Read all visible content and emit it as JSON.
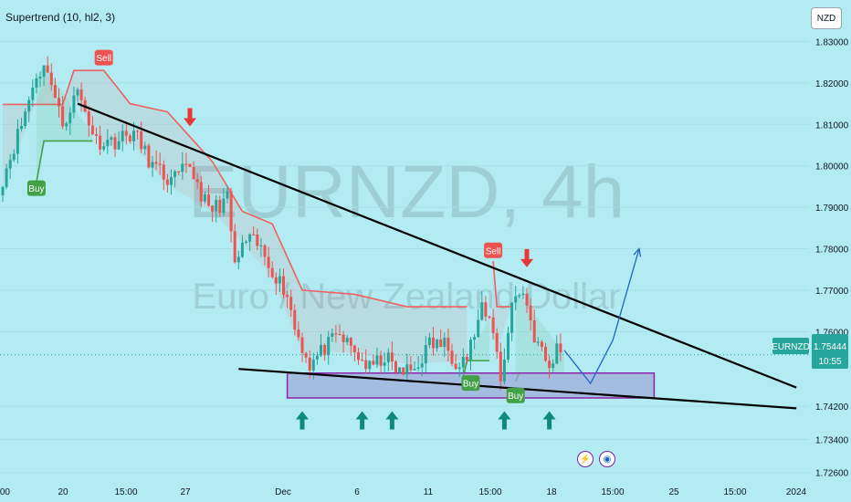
{
  "indicator": {
    "label": "Supertrend (10, hl2, 3)"
  },
  "currency_button": "NZD",
  "watermark": {
    "symbol": "EURNZD, 4h",
    "name": "Euro / New Zealand Dollar"
  },
  "price_tag": {
    "symbol": "EURNZD",
    "price": "1.75444",
    "countdown": "10:55"
  },
  "icons": [
    "lightning-icon",
    "calendar-icon"
  ],
  "colors": {
    "background": "#b2ebf2",
    "up": "#26a69a",
    "down": "#ef5350",
    "supertrend_down": "#f06060",
    "supertrend_up": "#43a047",
    "zone_fill": "#9fa8da",
    "zone_border": "#8e24aa",
    "projection": "#1e64c8",
    "signal_arrow_up": "#0f8a7a",
    "signal_arrow_down": "#e53935"
  },
  "chart_data": {
    "type": "candlestick",
    "y_range": [
      1.7222,
      1.8378
    ],
    "y_ticks": [
      "1.83000",
      "1.82000",
      "1.81000",
      "1.80000",
      "1.79000",
      "1.78000",
      "1.77000",
      "1.76000",
      "1.74200",
      "1.73400",
      "1.72600"
    ],
    "x_ticks": [
      ":00",
      "20",
      "15:00",
      "27",
      "Dec",
      "6",
      "11",
      "15:00",
      "18",
      "15:00",
      "25",
      "15:00",
      "2024"
    ],
    "candle_count": 150,
    "candle_keyframes": [
      [
        0,
        1.797
      ],
      [
        5,
        1.81
      ],
      [
        9,
        1.822
      ],
      [
        12,
        1.824
      ],
      [
        14,
        1.816
      ],
      [
        16,
        1.81
      ],
      [
        20,
        1.818
      ],
      [
        25,
        1.806
      ],
      [
        30,
        1.806
      ],
      [
        35,
        1.808
      ],
      [
        40,
        1.8
      ],
      [
        45,
        1.796
      ],
      [
        50,
        1.8
      ],
      [
        55,
        1.789
      ],
      [
        60,
        1.792
      ],
      [
        62,
        1.776
      ],
      [
        65,
        1.782
      ],
      [
        68,
        1.781
      ],
      [
        72,
        1.775
      ],
      [
        76,
        1.769
      ],
      [
        78,
        1.761
      ],
      [
        82,
        1.752
      ],
      [
        86,
        1.756
      ],
      [
        90,
        1.759
      ],
      [
        94,
        1.755
      ],
      [
        98,
        1.751
      ],
      [
        102,
        1.754
      ],
      [
        106,
        1.75
      ],
      [
        110,
        1.751
      ],
      [
        114,
        1.757
      ],
      [
        118,
        1.757
      ],
      [
        121,
        1.753
      ],
      [
        124,
        1.754
      ],
      [
        128,
        1.765
      ],
      [
        131,
        1.761
      ],
      [
        133,
        1.748
      ],
      [
        136,
        1.767
      ],
      [
        139,
        1.77
      ],
      [
        142,
        1.759
      ],
      [
        146,
        1.751
      ],
      [
        148,
        1.756
      ],
      [
        150,
        1.755
      ],
      [
        152,
        1.754
      ]
    ],
    "supertrend": {
      "down_segments": [
        [
          [
            0,
            1.8148
          ],
          [
            12,
            1.8148
          ],
          [
            16,
            1.8148
          ],
          [
            19,
            1.823
          ],
          [
            27,
            1.823
          ],
          [
            34,
            1.815
          ],
          [
            44,
            1.813
          ],
          [
            56,
            1.801
          ],
          [
            64,
            1.789
          ],
          [
            72,
            1.786
          ],
          [
            80,
            1.77
          ],
          [
            94,
            1.769
          ],
          [
            108,
            1.766
          ],
          [
            124,
            1.766
          ]
        ],
        [
          [
            131,
            1.777
          ],
          [
            132,
            1.766
          ],
          [
            136,
            1.766
          ]
        ]
      ],
      "up_segments": [
        [
          [
            9,
            1.796
          ],
          [
            11,
            1.806
          ],
          [
            24,
            1.806
          ]
        ],
        [
          [
            123,
            1.749
          ],
          [
            124,
            1.753
          ],
          [
            130,
            1.753
          ]
        ],
        [
          [
            137,
            1.748
          ],
          [
            138,
            1.75
          ],
          [
            150,
            1.75
          ]
        ]
      ]
    },
    "labels": [
      {
        "text": "Sell",
        "type": "sell",
        "x": 27,
        "y": 1.826
      },
      {
        "text": "Buy",
        "type": "buy",
        "x": 9,
        "y": 1.7945
      },
      {
        "text": "Buy",
        "type": "buy",
        "x": 125,
        "y": 1.7475
      },
      {
        "text": "Sell",
        "type": "sell",
        "x": 131,
        "y": 1.7795
      },
      {
        "text": "Buy",
        "type": "buy",
        "x": 137,
        "y": 1.7445
      }
    ],
    "signal_arrows": [
      {
        "dir": "down",
        "x": 50,
        "y": 1.8095
      },
      {
        "dir": "down",
        "x": 140,
        "y": 1.7755
      },
      {
        "dir": "up",
        "x": 80,
        "y": 1.7408
      },
      {
        "dir": "up",
        "x": 96,
        "y": 1.7408
      },
      {
        "dir": "up",
        "x": 104,
        "y": 1.7408
      },
      {
        "dir": "up",
        "x": 134,
        "y": 1.7408
      },
      {
        "dir": "up",
        "x": 146,
        "y": 1.7408
      }
    ],
    "trendlines": [
      {
        "name": "descending-resistance",
        "from": [
          20,
          1.815
        ],
        "to": [
          212,
          1.7465
        ]
      },
      {
        "name": "ascending-support",
        "from": [
          63,
          1.751
        ],
        "to": [
          212,
          1.7415
        ]
      }
    ],
    "demand_zone": {
      "x": [
        76,
        174
      ],
      "y": [
        1.744,
        1.75
      ]
    },
    "projection_path": [
      [
        150,
        1.7555
      ],
      [
        157,
        1.7475
      ],
      [
        163,
        1.758
      ],
      [
        170,
        1.78
      ]
    ],
    "last_price_line": 1.75444
  }
}
